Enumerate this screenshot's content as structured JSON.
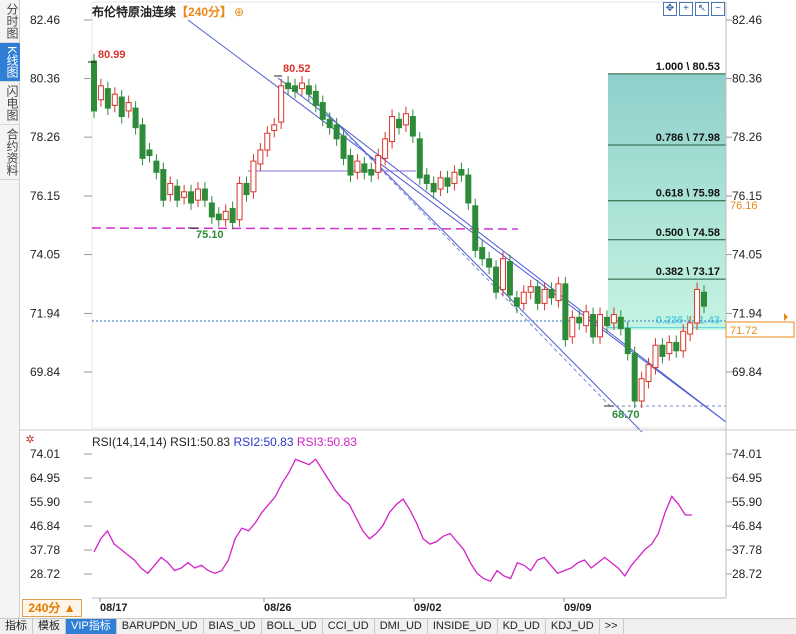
{
  "sidebar": {
    "tabs": [
      {
        "label": "分时图",
        "active": false
      },
      {
        "label": "K线图",
        "active": true
      },
      {
        "label": "闪电图",
        "active": false
      },
      {
        "label": "合约资料",
        "active": false
      }
    ]
  },
  "header": {
    "title": "布伦特原油连续",
    "period": "【240分】",
    "add_symbol": "⊕",
    "tool_icons": [
      "move-icon",
      "zoom-in-icon",
      "cursor-icon",
      "zoom-out-icon"
    ]
  },
  "price_axis": {
    "ticks": [
      "82.46",
      "80.36",
      "78.26",
      "76.15",
      "74.05",
      "71.94",
      "69.84"
    ],
    "fib_price_tag": "76.16",
    "current_price_tag": "71.72"
  },
  "annotations": {
    "high_1": "80.99",
    "high_2": "80.52",
    "low_1": "75.10",
    "low_2": "68.70"
  },
  "fibonacci": [
    {
      "label": "1.000 \\ 80.53",
      "price": 80.53
    },
    {
      "label": "0.786 \\ 77.98",
      "price": 77.98
    },
    {
      "label": "0.618 \\ 75.98",
      "price": 75.98
    },
    {
      "label": "0.500 \\ 74.58",
      "price": 74.58
    },
    {
      "label": "0.382 \\ 73.17",
      "price": 73.17
    },
    {
      "label": "0.236 \\ 71.43",
      "price": 71.43
    }
  ],
  "rsi": {
    "title": "RSI(14,14,14)",
    "rsi1": "RSI1:50.83",
    "rsi2": "RSI2:50.83",
    "rsi3": "RSI3:50.83",
    "ticks": [
      "74.01",
      "64.95",
      "55.90",
      "46.84",
      "37.78",
      "28.72"
    ]
  },
  "x_axis": {
    "labels": [
      "08/17",
      "08/26",
      "09/02",
      "09/09"
    ]
  },
  "period_button": "240分 ▲",
  "bottom_tabs": [
    {
      "label": "指标",
      "active": false
    },
    {
      "label": "模板",
      "active": false
    },
    {
      "label": "VIP指标",
      "active": true
    },
    {
      "label": "BARUPDN_UD",
      "active": false
    },
    {
      "label": "BIAS_UD",
      "active": false
    },
    {
      "label": "BOLL_UD",
      "active": false
    },
    {
      "label": "CCI_UD",
      "active": false
    },
    {
      "label": "DMI_UD",
      "active": false
    },
    {
      "label": "INSIDE_UD",
      "active": false
    },
    {
      "label": "KD_UD",
      "active": false
    },
    {
      "label": "KDJ_UD",
      "active": false
    },
    {
      "label": ">>",
      "active": false
    }
  ],
  "colors": {
    "up": "#d9342b",
    "down": "#2e8b3a",
    "channel": "#3a4cc8",
    "support": "#d32fd3",
    "fib_fill_top": "#7ec8c4",
    "fib_fill_bottom": "#b8f0e0",
    "rsi_line": "#d322c9",
    "current_price": "#e8891a"
  }
}
